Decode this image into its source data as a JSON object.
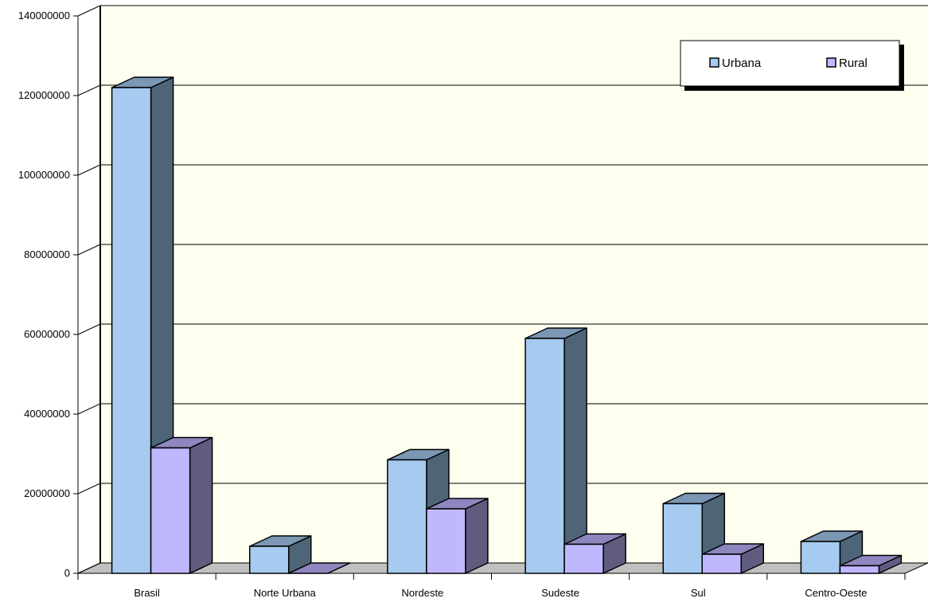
{
  "chart_data": {
    "type": "bar",
    "title": "",
    "xlabel": "",
    "ylabel": "",
    "ylim": [
      0,
      140000000
    ],
    "yticks": [
      "0",
      "20000000",
      "40000000",
      "60000000",
      "80000000",
      "100000000",
      "120000000",
      "140000000"
    ],
    "categories": [
      "Brasil",
      "Norte Urbana",
      "Nordeste",
      "Sudeste",
      "Sul",
      "Centro-Oeste"
    ],
    "series": [
      {
        "name": "Urbana",
        "values": [
          122000000,
          6800000,
          28500000,
          59000000,
          17500000,
          8000000
        ]
      },
      {
        "name": "Rural",
        "values": [
          31500000,
          0,
          16200000,
          7300000,
          4800000,
          1900000
        ]
      }
    ],
    "grid": true,
    "legend_position": "top-right",
    "style": "3d"
  },
  "colors": {
    "urbana_front": "#A6CAF0",
    "urbana_side": "#4E6578",
    "urbana_top": "#7B97B4",
    "rural_front": "#C0B8FF",
    "rural_side": "#5F5C80",
    "rural_top": "#8D86BF",
    "wall": "#FFFFF0",
    "floor": "#C0C0C0"
  }
}
